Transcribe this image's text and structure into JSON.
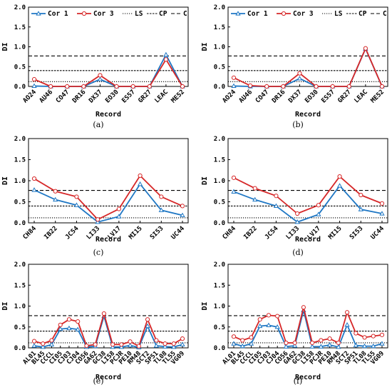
{
  "chart_data": [
    {
      "type": "line",
      "caption": "(a)",
      "categories": [
        "AO24",
        "AU46",
        "CO47",
        "DR16",
        "DX37",
        "EO30",
        "ES57",
        "GR27",
        "LEAC",
        "ME52"
      ],
      "xlabel": "Record",
      "ylabel": "DI",
      "ylim": [
        0,
        2.0
      ],
      "yticks": [
        "0.0",
        "0.5",
        "1.0",
        "1.5",
        "2.0"
      ],
      "series": [
        {
          "name": "Cor 1",
          "color": "#1f77c4",
          "marker": "triangle",
          "values": [
            0.01,
            0.0,
            0.0,
            0.0,
            0.18,
            0.0,
            0.0,
            0.0,
            0.8,
            0.0
          ]
        },
        {
          "name": "Cor 3",
          "color": "#d62728",
          "marker": "circle",
          "values": [
            0.18,
            0.0,
            0.0,
            0.0,
            0.28,
            0.0,
            0.0,
            0.0,
            0.68,
            0.0
          ]
        }
      ],
      "reference_lines": [
        {
          "name": "LS",
          "style": "dotted",
          "value": 0.12
        },
        {
          "name": "CP",
          "style": "dashed-fine",
          "value": 0.4
        },
        {
          "name": "C",
          "style": "dashed",
          "value": 0.77
        }
      ],
      "legend": "top",
      "grid": false
    },
    {
      "type": "line",
      "caption": "(b)",
      "categories": [
        "AO24",
        "AU46",
        "CO47",
        "DR16",
        "DX37",
        "EO30",
        "ES57",
        "GR27",
        "LEAC",
        "ME52"
      ],
      "xlabel": "Record",
      "ylabel": "DI",
      "ylim": [
        0,
        2.0
      ],
      "yticks": [
        "0.0",
        "0.5",
        "1.0",
        "1.5",
        "2.0"
      ],
      "series": [
        {
          "name": "Cor 1",
          "color": "#1f77c4",
          "marker": "triangle",
          "values": [
            0.01,
            0.0,
            0.0,
            0.0,
            0.2,
            0.0,
            0.0,
            0.0,
            0.95,
            0.0
          ]
        },
        {
          "name": "Cor 3",
          "color": "#d62728",
          "marker": "circle",
          "values": [
            0.22,
            0.02,
            0.0,
            0.0,
            0.33,
            0.0,
            0.0,
            0.0,
            0.96,
            0.0
          ]
        }
      ],
      "reference_lines": [
        {
          "name": "LS",
          "style": "dotted",
          "value": 0.12
        },
        {
          "name": "CP",
          "style": "dashed-fine",
          "value": 0.4
        },
        {
          "name": "C",
          "style": "dashed",
          "value": 0.77
        }
      ],
      "legend": "top",
      "grid": false
    },
    {
      "type": "line",
      "caption": "(c)",
      "categories": [
        "CH84",
        "IB22",
        "JC54",
        "LI33",
        "LV17",
        "MI15",
        "SI53",
        "UC44"
      ],
      "xlabel": "Record",
      "ylabel": "DI",
      "ylim": [
        0,
        2.0
      ],
      "yticks": [
        "0.0",
        "0.5",
        "1.0",
        "1.5",
        "2.0"
      ],
      "series": [
        {
          "name": "Cor 1",
          "color": "#1f77c4",
          "marker": "triangle",
          "values": [
            0.78,
            0.55,
            0.42,
            0.02,
            0.15,
            0.92,
            0.3,
            0.18
          ]
        },
        {
          "name": "Cor 3",
          "color": "#d62728",
          "marker": "circle",
          "values": [
            1.05,
            0.75,
            0.62,
            0.08,
            0.33,
            1.12,
            0.62,
            0.4
          ]
        }
      ],
      "reference_lines": [
        {
          "name": "LS",
          "style": "dotted",
          "value": 0.12
        },
        {
          "name": "CP",
          "style": "dashed-fine",
          "value": 0.4
        },
        {
          "name": "C",
          "style": "dashed",
          "value": 0.77
        }
      ],
      "legend": "none",
      "grid": false
    },
    {
      "type": "line",
      "caption": "(d)",
      "categories": [
        "CH84",
        "IB22",
        "JC54",
        "LI33",
        "LV17",
        "MI15",
        "SI53",
        "UC44"
      ],
      "xlabel": "Record",
      "ylabel": "DI",
      "ylim": [
        0,
        2.0
      ],
      "yticks": [
        "0.0",
        "0.5",
        "1.0",
        "1.5",
        "2.0"
      ],
      "series": [
        {
          "name": "Cor 1",
          "color": "#1f77c4",
          "marker": "triangle",
          "values": [
            0.74,
            0.55,
            0.4,
            0.02,
            0.2,
            0.88,
            0.32,
            0.22
          ]
        },
        {
          "name": "Cor 3",
          "color": "#d62728",
          "marker": "circle",
          "values": [
            1.07,
            0.82,
            0.64,
            0.22,
            0.42,
            1.1,
            0.66,
            0.46
          ]
        }
      ],
      "reference_lines": [
        {
          "name": "LS",
          "style": "dotted",
          "value": 0.12
        },
        {
          "name": "CP",
          "style": "dashed-fine",
          "value": 0.4
        },
        {
          "name": "C",
          "style": "dashed",
          "value": 0.77
        }
      ],
      "legend": "none",
      "grid": false
    },
    {
      "type": "line",
      "caption": "(e)",
      "categories": [
        "AL01",
        "BL45",
        "CCCL",
        "CI05",
        "CJ03",
        "CJ04",
        "CO56",
        "GA62",
        "GC38",
        "LI58",
        "PCJR",
        "PE10",
        "RM48",
        "SCT2",
        "SP51",
        "TL08",
        "TL55",
        "VG09"
      ],
      "xlabel": "Record",
      "ylabel": "DI",
      "ylim": [
        0,
        2.0
      ],
      "yticks": [
        "0.0",
        "0.5",
        "1.0",
        "1.5",
        "2.0"
      ],
      "series": [
        {
          "name": "Cor 1",
          "color": "#1f77c4",
          "marker": "triangle",
          "values": [
            0.05,
            0.02,
            0.08,
            0.45,
            0.47,
            0.44,
            0.02,
            0.04,
            0.76,
            0.02,
            0.02,
            0.06,
            0.01,
            0.52,
            0.05,
            0.03,
            0.02,
            0.08
          ]
        },
        {
          "name": "Cor 3",
          "color": "#d62728",
          "marker": "circle",
          "values": [
            0.16,
            0.1,
            0.18,
            0.55,
            0.68,
            0.63,
            0.05,
            0.08,
            0.82,
            0.08,
            0.08,
            0.15,
            0.04,
            0.68,
            0.18,
            0.1,
            0.1,
            0.22
          ]
        }
      ],
      "reference_lines": [
        {
          "name": "LS",
          "style": "dotted",
          "value": 0.12
        },
        {
          "name": "CP",
          "style": "dashed-fine",
          "value": 0.4
        },
        {
          "name": "C",
          "style": "dashed",
          "value": 0.77
        }
      ],
      "legend": "none",
      "grid": false
    },
    {
      "type": "line",
      "caption": "(f)",
      "categories": [
        "AL01",
        "BL45",
        "CCCL",
        "CI05",
        "CJ03",
        "CJ04",
        "CO56",
        "GA62",
        "GC38",
        "LI58",
        "PCJR",
        "PE10",
        "RM48",
        "SCT2",
        "SP51",
        "TL08",
        "TL55",
        "VG09"
      ],
      "xlabel": "Record",
      "ylabel": "DI",
      "ylim": [
        0,
        2.0
      ],
      "yticks": [
        "0.0",
        "0.5",
        "1.0",
        "1.5",
        "2.0"
      ],
      "series": [
        {
          "name": "Cor 1",
          "color": "#1f77c4",
          "marker": "triangle",
          "values": [
            0.1,
            0.04,
            0.1,
            0.52,
            0.54,
            0.5,
            0.03,
            0.05,
            0.9,
            0.03,
            0.03,
            0.07,
            0.02,
            0.55,
            0.06,
            0.04,
            0.04,
            0.1
          ]
        },
        {
          "name": "Cor 3",
          "color": "#d62728",
          "marker": "circle",
          "values": [
            0.27,
            0.18,
            0.25,
            0.68,
            0.78,
            0.76,
            0.12,
            0.12,
            0.97,
            0.12,
            0.18,
            0.22,
            0.12,
            0.85,
            0.35,
            0.25,
            0.28,
            0.31
          ]
        }
      ],
      "reference_lines": [
        {
          "name": "LS",
          "style": "dotted",
          "value": 0.12
        },
        {
          "name": "CP",
          "style": "dashed-fine",
          "value": 0.4
        },
        {
          "name": "C",
          "style": "dashed",
          "value": 0.77
        }
      ],
      "legend": "none",
      "grid": false
    }
  ]
}
